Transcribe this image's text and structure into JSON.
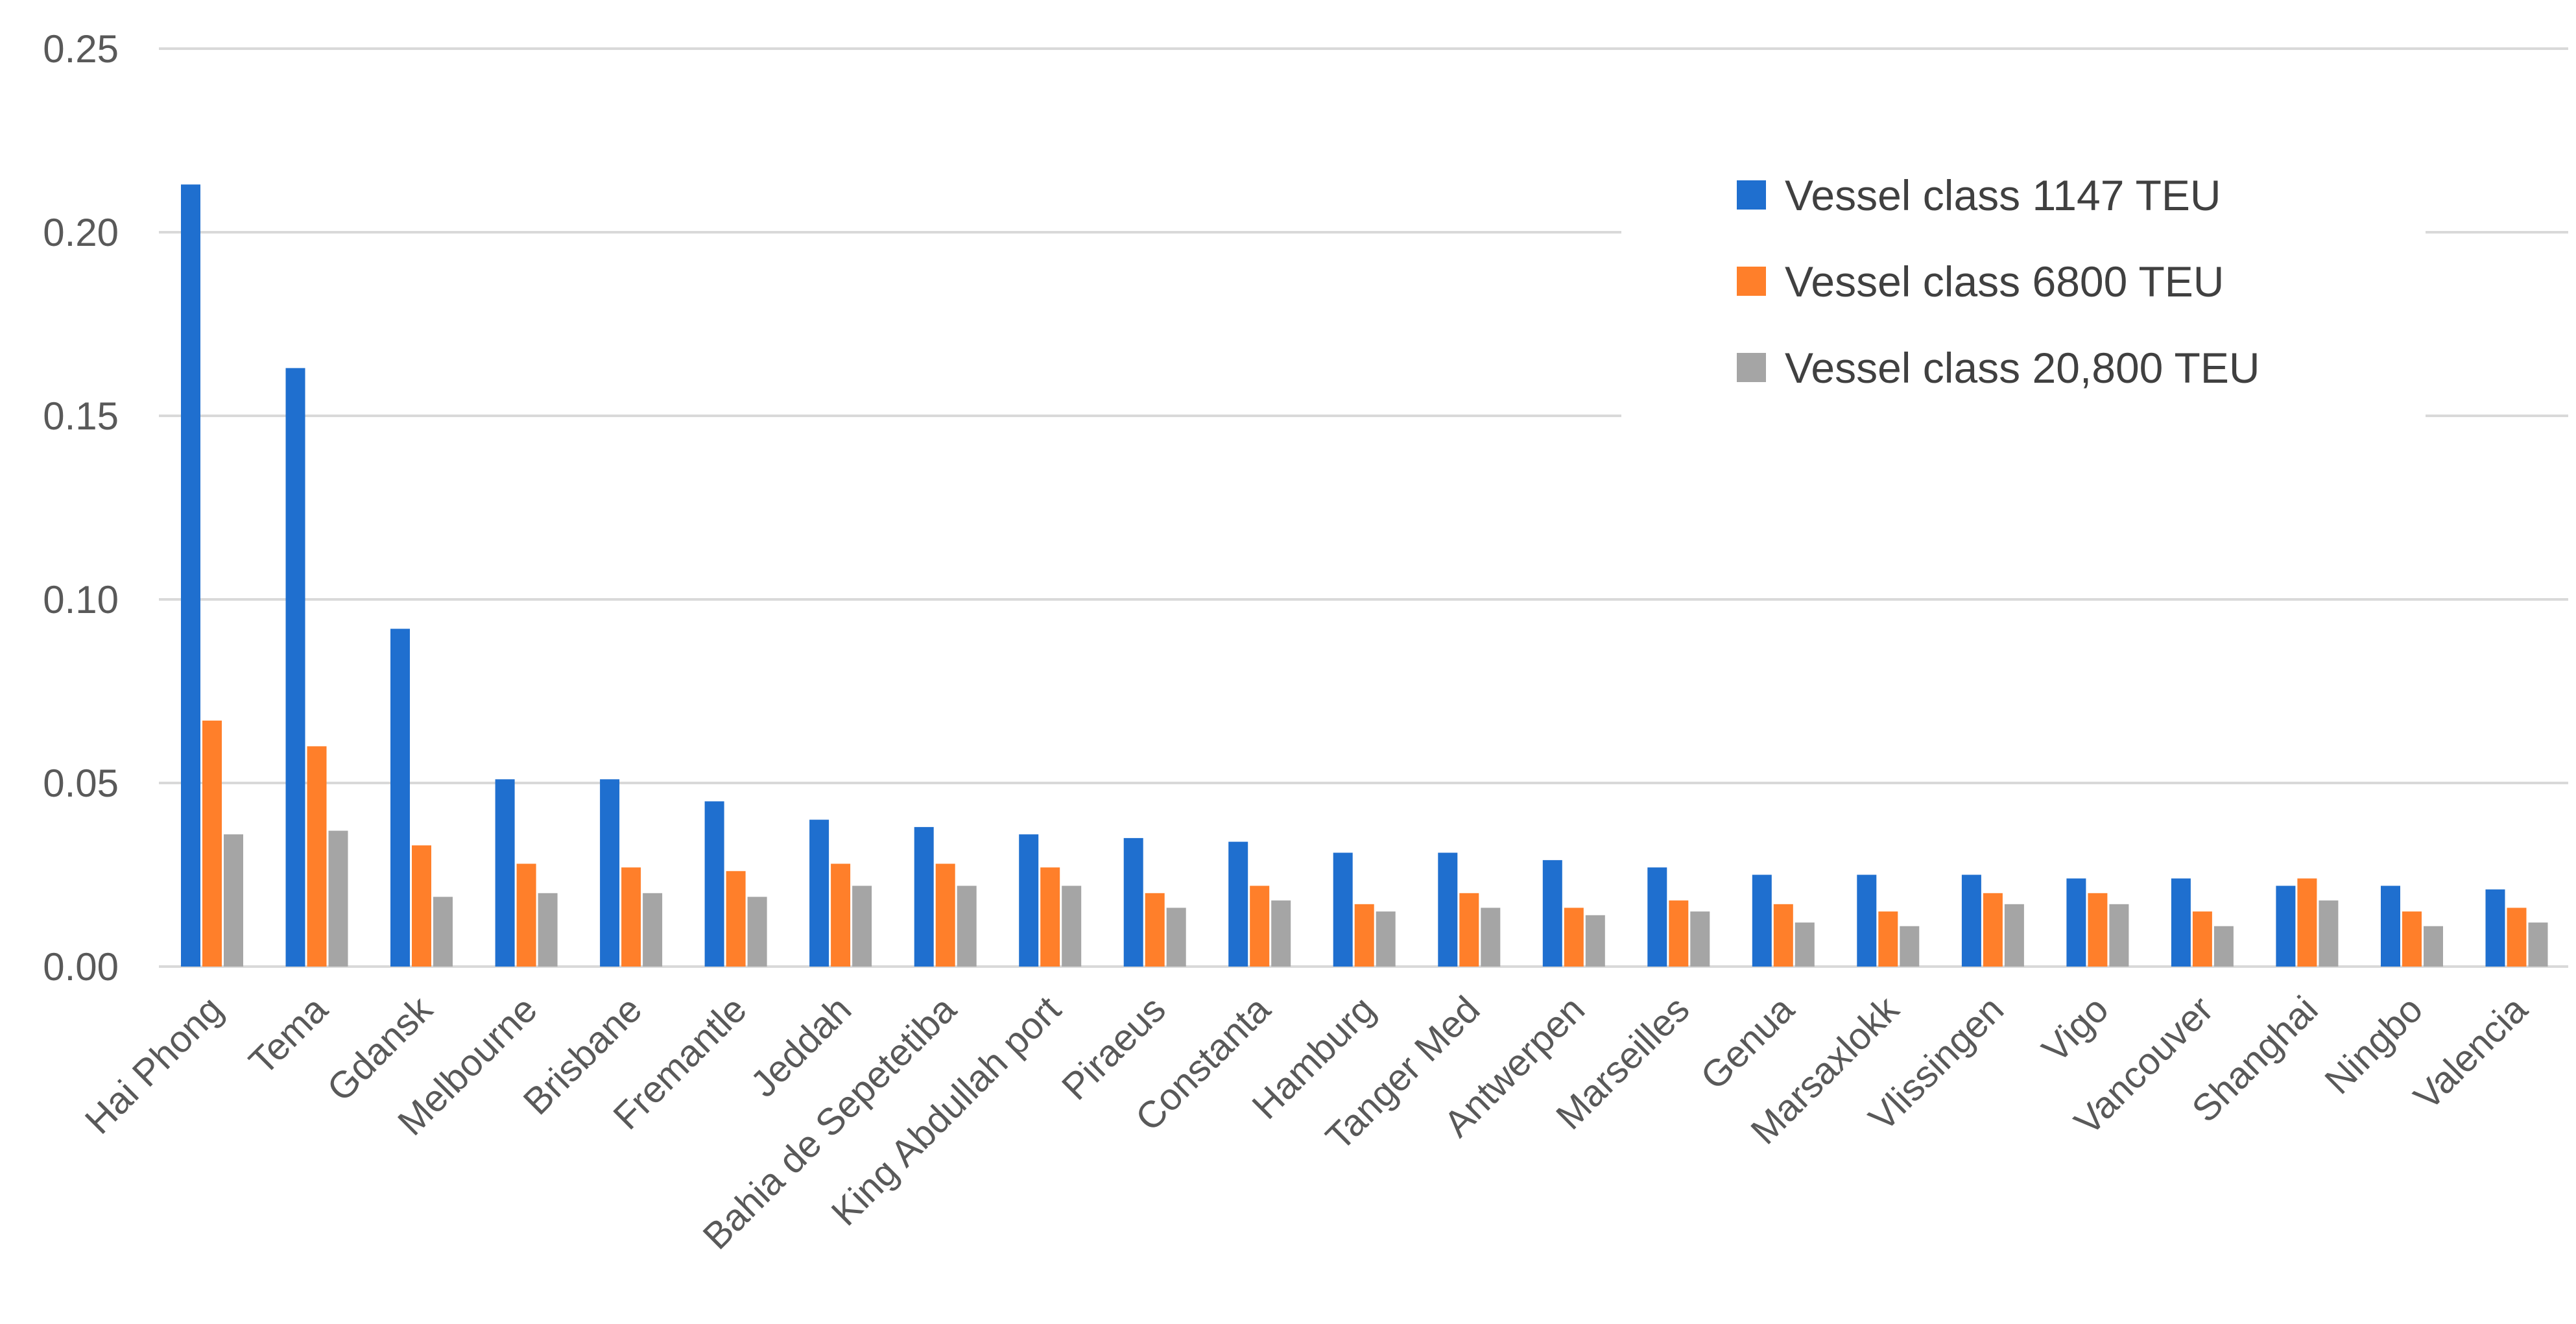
{
  "chart_data": {
    "type": "bar",
    "categories": [
      "Hai Phong",
      "Tema",
      "Gdansk",
      "Melbourne",
      "Brisbane",
      "Fremantle",
      "Jeddah",
      "Bahia de Sepetetiba",
      "King Abdullah port",
      "Piraeus",
      "Constanta",
      "Hamburg",
      "Tanger Med",
      "Antwerpen",
      "Marseilles",
      "Genua",
      "Marsaxlokk",
      "Vlissingen",
      "Vigo",
      "Vancouver",
      "Shanghai",
      "Ningbo",
      "Valencia"
    ],
    "series": [
      {
        "name": "Vessel class 1147 TEU",
        "color": "#1f6fcf",
        "values": [
          0.213,
          0.163,
          0.092,
          0.051,
          0.051,
          0.045,
          0.04,
          0.038,
          0.036,
          0.035,
          0.034,
          0.031,
          0.031,
          0.029,
          0.027,
          0.025,
          0.025,
          0.025,
          0.024,
          0.024,
          0.022,
          0.022,
          0.021
        ]
      },
      {
        "name": "Vessel class 6800 TEU",
        "color": "#ff7f2a",
        "values": [
          0.067,
          0.06,
          0.033,
          0.028,
          0.027,
          0.026,
          0.028,
          0.028,
          0.027,
          0.02,
          0.022,
          0.017,
          0.02,
          0.016,
          0.018,
          0.017,
          0.015,
          0.02,
          0.02,
          0.015,
          0.024,
          0.015,
          0.016
        ]
      },
      {
        "name": "Vessel class 20,800 TEU",
        "color": "#a5a5a5",
        "values": [
          0.036,
          0.037,
          0.019,
          0.02,
          0.02,
          0.019,
          0.022,
          0.022,
          0.022,
          0.016,
          0.018,
          0.015,
          0.016,
          0.014,
          0.015,
          0.012,
          0.011,
          0.017,
          0.017,
          0.011,
          0.018,
          0.011,
          0.012
        ]
      }
    ],
    "y_ticks": [
      "0.00",
      "0.05",
      "0.10",
      "0.15",
      "0.20",
      "0.25"
    ],
    "ylim": [
      0,
      0.25
    ],
    "grid": true,
    "legend_position": "top-right",
    "title": "",
    "xlabel": "",
    "ylabel": ""
  }
}
